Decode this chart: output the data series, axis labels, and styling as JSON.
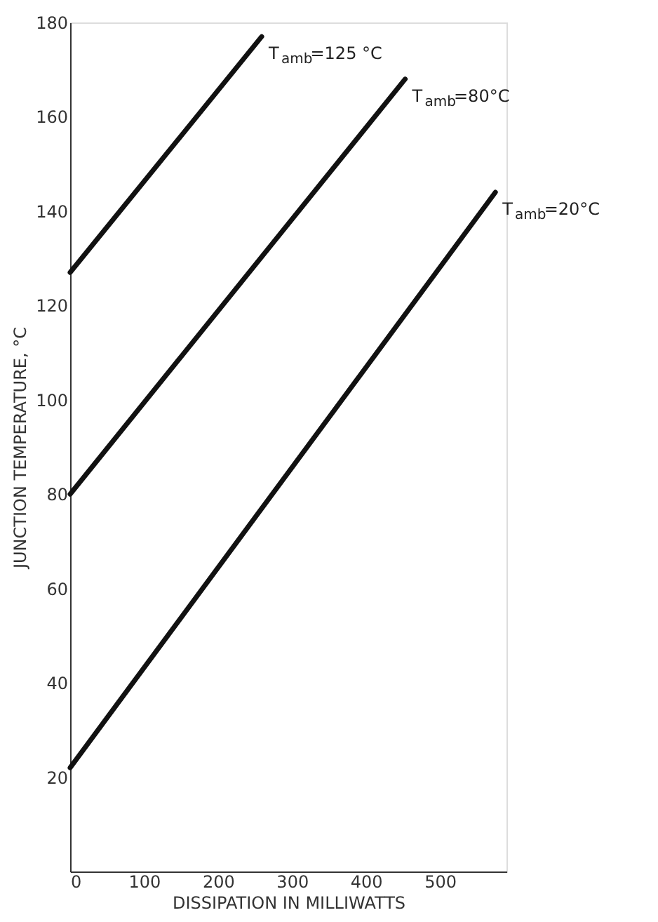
{
  "chart_data": {
    "type": "line",
    "xlabel": "DISSIPATION IN MILLIWATTS",
    "ylabel": "JUNCTION TEMPERATURE, °C",
    "xlim": [
      0,
      590
    ],
    "xticks": [
      0,
      100,
      200,
      300,
      400,
      500
    ],
    "ylim": [
      0,
      180
    ],
    "yticks": [
      20,
      40,
      60,
      80,
      100,
      120,
      140,
      160,
      180
    ],
    "grid": false,
    "line_style": "solid",
    "marker": "none",
    "series": [
      {
        "color": "#111111",
        "x": [
          0,
          259
        ],
        "values": [
          127,
          177
        ]
      },
      {
        "color": "#111111",
        "x": [
          0,
          453
        ],
        "values": [
          80,
          168
        ]
      },
      {
        "color": "#111111",
        "x": [
          0,
          575
        ],
        "values": [
          22,
          144
        ]
      }
    ],
    "annotations": [
      "T$_{amb}$=125 °C",
      "T$_{amb}$=80°C",
      "T$_{amb}$=20°C"
    ]
  }
}
